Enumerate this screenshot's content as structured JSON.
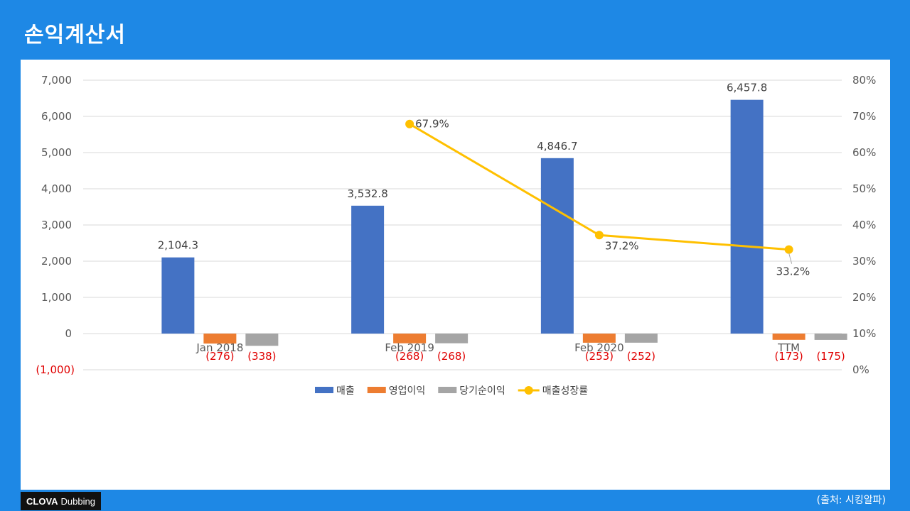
{
  "page": {
    "title": "손익계산서",
    "source": "(출처: 시킹알파)",
    "logo_bold": "CLOVA",
    "logo_text": "Dubbing"
  },
  "chart_data": {
    "type": "bar",
    "categories": [
      "Jan 2018",
      "Feb 2019",
      "Feb 2020",
      "TTM"
    ],
    "series": [
      {
        "name": "매출",
        "values": [
          2104.3,
          3532.8,
          4846.7,
          6457.8
        ],
        "color": "#4472c4",
        "labels": [
          "2,104.3",
          "3,532.8",
          "4,846.7",
          "6,457.8"
        ]
      },
      {
        "name": "영업이익",
        "values": [
          -276,
          -268,
          -253,
          -173
        ],
        "color": "#ed7d31",
        "labels": [
          "(276)",
          "(268)",
          "(253)",
          "(173)"
        ]
      },
      {
        "name": "당기순이익",
        "values": [
          -338,
          -268,
          -252,
          -175
        ],
        "color": "#a5a5a5",
        "labels": [
          "(338)",
          "(268)",
          "(252)",
          "(175)"
        ]
      }
    ],
    "line_series": {
      "name": "매출성장률",
      "color": "#ffc000",
      "axis": "right",
      "values": [
        null,
        67.9,
        37.2,
        33.2
      ],
      "labels": [
        "",
        "67.9%",
        "37.2%",
        "33.2%"
      ]
    },
    "y_left": {
      "ylim": [
        -1000,
        7000
      ],
      "ticks": [
        -1000,
        0,
        1000,
        2000,
        3000,
        4000,
        5000,
        6000,
        7000
      ],
      "tick_labels": [
        "(1,000)",
        "0",
        "1,000",
        "2,000",
        "3,000",
        "4,000",
        "5,000",
        "6,000",
        "7,000"
      ]
    },
    "y_right": {
      "ylim": [
        0,
        80
      ],
      "ticks": [
        0,
        10,
        20,
        30,
        40,
        50,
        60,
        70,
        80
      ],
      "tick_labels": [
        "0%",
        "10%",
        "20%",
        "30%",
        "40%",
        "50%",
        "60%",
        "70%",
        "80%"
      ]
    },
    "grid": true,
    "legend_position": "bottom",
    "negative_label_color": "#e00000"
  }
}
